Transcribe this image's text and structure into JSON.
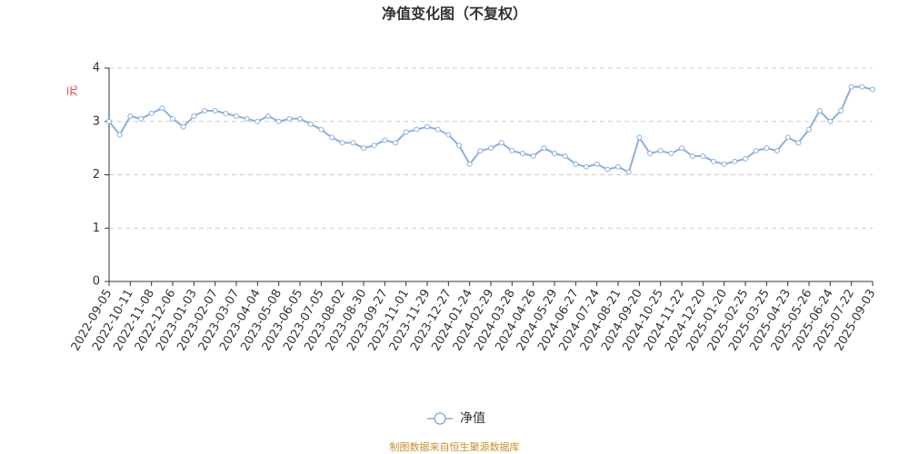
{
  "chart_data": {
    "type": "line",
    "title": "净值变化图（不复权）",
    "y_label": "元",
    "source": "制图数据来自恒生聚源数据库",
    "categories": [
      "2022-09-05",
      null,
      "2022-10-11",
      null,
      "2022-11-08",
      null,
      "2022-12-06",
      null,
      "2023-01-03",
      null,
      "2023-02-07",
      null,
      "2023-03-07",
      null,
      "2023-04-04",
      null,
      "2023-05-08",
      null,
      "2023-06-05",
      null,
      "2023-07-05",
      null,
      "2023-08-02",
      null,
      "2023-08-30",
      null,
      "2023-09-27",
      null,
      "2023-11-01",
      null,
      "2023-11-29",
      null,
      "2023-12-27",
      null,
      "2024-01-24",
      null,
      "2024-02-29",
      null,
      "2024-03-28",
      null,
      "2024-04-26",
      null,
      "2024-05-29",
      null,
      "2024-06-27",
      null,
      "2024-07-24",
      null,
      "2024-08-21",
      null,
      "2024-09-20",
      null,
      "2024-10-25",
      null,
      "2024-11-22",
      null,
      "2024-12-20",
      null,
      "2025-01-20",
      null,
      "2025-02-25",
      null,
      "2025-03-25",
      null,
      "2025-04-23",
      null,
      "2025-05-26",
      null,
      "2025-06-24",
      null,
      "2025-07-22",
      null,
      "2025-09-03"
    ],
    "series": [
      {
        "name": "净值",
        "color": "#8bb0dc",
        "values": [
          3.0,
          2.75,
          3.1,
          3.05,
          3.15,
          3.25,
          3.05,
          2.9,
          3.1,
          3.2,
          3.2,
          3.15,
          3.1,
          3.05,
          3.0,
          3.1,
          3.0,
          3.05,
          3.05,
          2.95,
          2.85,
          2.7,
          2.6,
          2.6,
          2.5,
          2.55,
          2.65,
          2.6,
          2.8,
          2.85,
          2.9,
          2.85,
          2.75,
          2.55,
          2.2,
          2.45,
          2.5,
          2.6,
          2.45,
          2.4,
          2.35,
          2.5,
          2.4,
          2.35,
          2.2,
          2.15,
          2.2,
          2.1,
          2.15,
          2.05,
          2.7,
          2.4,
          2.45,
          2.4,
          2.5,
          2.35,
          2.35,
          2.25,
          2.2,
          2.25,
          2.3,
          2.45,
          2.5,
          2.45,
          2.7,
          2.6,
          2.85,
          3.2,
          3.0,
          3.2,
          3.65,
          3.65,
          3.6
        ]
      }
    ],
    "ylim": [
      0,
      4
    ],
    "yticks": [
      0,
      1,
      2,
      3,
      4
    ],
    "grid": true
  }
}
